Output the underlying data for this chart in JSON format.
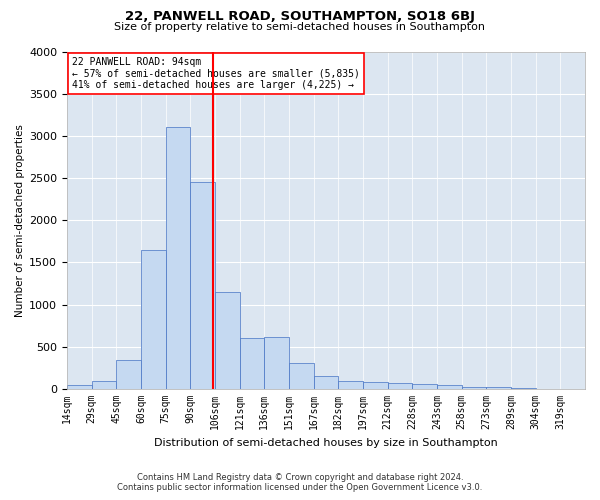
{
  "title": "22, PANWELL ROAD, SOUTHAMPTON, SO18 6BJ",
  "subtitle": "Size of property relative to semi-detached houses in Southampton",
  "xlabel": "Distribution of semi-detached houses by size in Southampton",
  "ylabel": "Number of semi-detached properties",
  "footnote1": "Contains HM Land Registry data © Crown copyright and database right 2024.",
  "footnote2": "Contains public sector information licensed under the Open Government Licence v3.0.",
  "annotation_line1": "22 PANWELL ROAD: 94sqm",
  "annotation_line2": "← 57% of semi-detached houses are smaller (5,835)",
  "annotation_line3": "41% of semi-detached houses are larger (4,225) →",
  "bar_color": "#c5d9f1",
  "bar_edge_color": "#4472c4",
  "background_color": "#dce6f1",
  "grid_color": "#ffffff",
  "property_line_color": "red",
  "categories": [
    "14sqm",
    "29sqm",
    "45sqm",
    "60sqm",
    "75sqm",
    "90sqm",
    "106sqm",
    "121sqm",
    "136sqm",
    "151sqm",
    "167sqm",
    "182sqm",
    "197sqm",
    "212sqm",
    "228sqm",
    "243sqm",
    "258sqm",
    "273sqm",
    "289sqm",
    "304sqm",
    "319sqm"
  ],
  "bin_left_edges": [
    0,
    1,
    2,
    3,
    4,
    5,
    6,
    7,
    8,
    9,
    10,
    11,
    12,
    13,
    14,
    15,
    16,
    17,
    18,
    19,
    20
  ],
  "values": [
    50,
    100,
    350,
    1650,
    3100,
    2450,
    1150,
    600,
    620,
    310,
    160,
    100,
    80,
    75,
    60,
    45,
    30,
    20,
    10,
    5,
    3
  ],
  "property_bin": 5.93,
  "ylim": [
    0,
    4000
  ],
  "yticks": [
    0,
    500,
    1000,
    1500,
    2000,
    2500,
    3000,
    3500,
    4000
  ]
}
